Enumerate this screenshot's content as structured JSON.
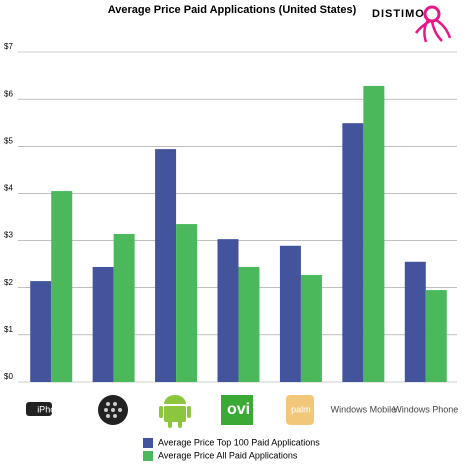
{
  "chart_data": {
    "type": "bar",
    "title": "Average Price Paid Applications (United States)",
    "brand": "DISTIMO",
    "categories": [
      "iPhone",
      null,
      null,
      "ovi",
      "palm",
      "Windows Mobile",
      "Windows Phone"
    ],
    "series": [
      {
        "name": "Average Price Top 100 Paid Applications",
        "color": "#44549c",
        "values": [
          2.14,
          2.44,
          4.94,
          3.03,
          2.89,
          5.49,
          2.55
        ]
      },
      {
        "name": "Average Price All Paid Applications",
        "color": "#4cb85c",
        "values": [
          4.05,
          3.14,
          3.35,
          2.44,
          2.27,
          6.28,
          1.95
        ]
      }
    ],
    "ylim": [
      0,
      7
    ],
    "yticks": [
      {
        "value": 0,
        "label": "$0"
      },
      {
        "value": 1,
        "label": "$1"
      },
      {
        "value": 2,
        "label": "$2"
      },
      {
        "value": 3,
        "label": "$3"
      },
      {
        "value": 4,
        "label": "$4"
      },
      {
        "value": 5,
        "label": "$5"
      },
      {
        "value": 6,
        "label": "$6"
      },
      {
        "value": 7,
        "label": "$7"
      }
    ],
    "grid": true
  }
}
